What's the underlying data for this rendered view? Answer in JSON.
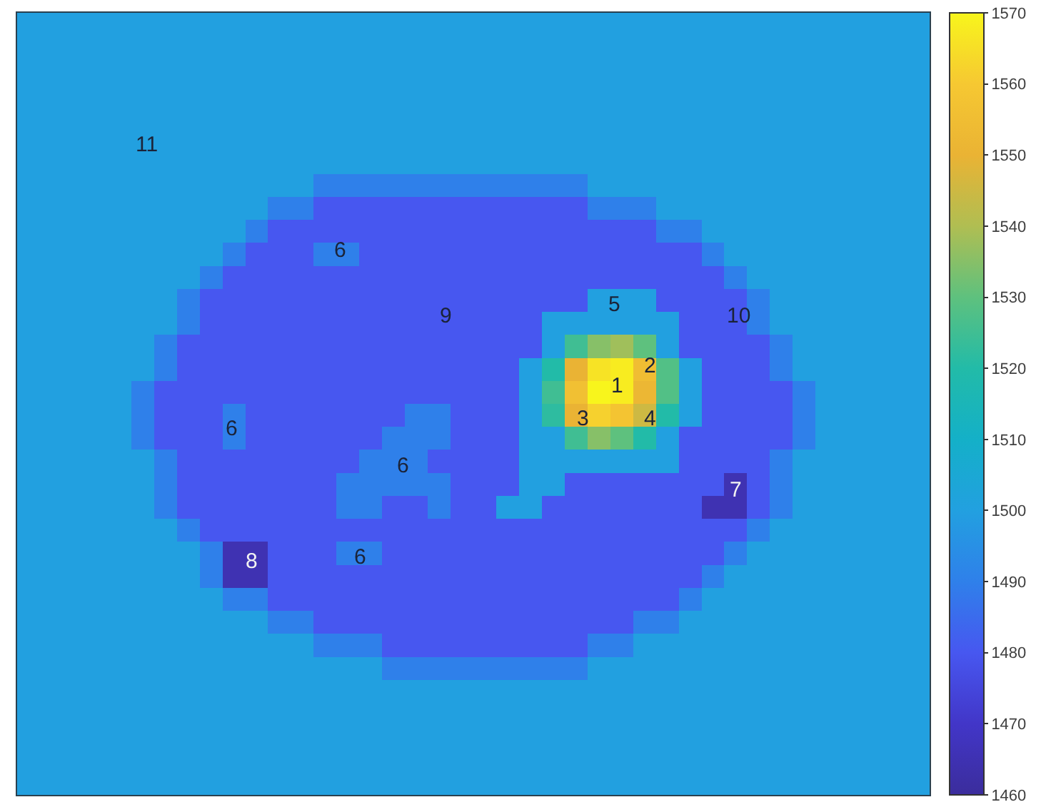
{
  "chart_data": {
    "type": "heatmap",
    "categories": [
      null,
      null,
      null,
      null,
      null,
      null,
      null,
      null,
      null,
      null,
      null,
      null,
      null,
      null,
      null,
      null,
      null,
      null,
      null,
      null,
      null,
      null,
      null,
      null,
      null,
      null,
      null,
      null,
      null,
      null,
      null,
      null,
      null,
      null,
      null,
      null,
      null,
      null,
      null,
      null
    ],
    "y_categories": [
      null,
      null,
      null,
      null,
      null,
      null,
      null,
      null,
      null,
      null,
      null,
      null,
      null,
      null,
      null,
      null,
      null,
      null,
      null,
      null,
      null,
      null,
      null,
      null,
      null,
      null,
      null,
      null,
      null,
      null,
      null,
      null,
      null,
      null
    ],
    "cells": [
      [
        1500,
        1500,
        1500,
        1500,
        1500,
        1500,
        1500,
        1500,
        1500,
        1500,
        1500,
        1500,
        1500,
        1500,
        1500,
        1500,
        1500,
        1500,
        1500,
        1500,
        1500,
        1500,
        1500,
        1500,
        1500,
        1500,
        1500,
        1500,
        1500,
        1500,
        1500,
        1500,
        1500,
        1500,
        1500,
        1500,
        1500,
        1500,
        1500,
        1500
      ],
      [
        1500,
        1500,
        1500,
        1500,
        1500,
        1500,
        1500,
        1500,
        1500,
        1500,
        1500,
        1500,
        1500,
        1500,
        1500,
        1500,
        1500,
        1500,
        1500,
        1500,
        1500,
        1500,
        1500,
        1500,
        1500,
        1500,
        1500,
        1500,
        1500,
        1500,
        1500,
        1500,
        1500,
        1500,
        1500,
        1500,
        1500,
        1500,
        1500,
        1500
      ],
      [
        1500,
        1500,
        1500,
        1500,
        1500,
        1500,
        1500,
        1500,
        1500,
        1500,
        1500,
        1500,
        1500,
        1500,
        1500,
        1500,
        1500,
        1500,
        1500,
        1500,
        1500,
        1500,
        1500,
        1500,
        1500,
        1500,
        1500,
        1500,
        1500,
        1500,
        1500,
        1500,
        1500,
        1500,
        1500,
        1500,
        1500,
        1500,
        1500,
        1500
      ],
      [
        1500,
        1500,
        1500,
        1500,
        1500,
        1500,
        1500,
        1500,
        1500,
        1500,
        1500,
        1500,
        1500,
        1500,
        1500,
        1500,
        1500,
        1500,
        1500,
        1500,
        1500,
        1500,
        1500,
        1500,
        1500,
        1500,
        1500,
        1500,
        1500,
        1500,
        1500,
        1500,
        1500,
        1500,
        1500,
        1500,
        1500,
        1500,
        1500,
        1500
      ],
      [
        1500,
        1500,
        1500,
        1500,
        1500,
        1500,
        1500,
        1500,
        1500,
        1500,
        1500,
        1500,
        1500,
        1500,
        1500,
        1500,
        1500,
        1500,
        1500,
        1500,
        1500,
        1500,
        1500,
        1500,
        1500,
        1500,
        1500,
        1500,
        1500,
        1500,
        1500,
        1500,
        1500,
        1500,
        1500,
        1500,
        1500,
        1500,
        1500,
        1500
      ],
      [
        1500,
        1500,
        1500,
        1500,
        1500,
        1500,
        1500,
        1500,
        1500,
        1500,
        1500,
        1500,
        1500,
        1500,
        1500,
        1500,
        1500,
        1500,
        1500,
        1500,
        1500,
        1500,
        1500,
        1500,
        1500,
        1500,
        1500,
        1500,
        1500,
        1500,
        1500,
        1500,
        1500,
        1500,
        1500,
        1500,
        1500,
        1500,
        1500,
        1500
      ],
      [
        1500,
        1500,
        1500,
        1500,
        1500,
        1500,
        1500,
        1500,
        1500,
        1500,
        1500,
        1500,
        1500,
        1500,
        1500,
        1500,
        1500,
        1500,
        1500,
        1500,
        1500,
        1500,
        1500,
        1500,
        1500,
        1500,
        1500,
        1500,
        1500,
        1500,
        1500,
        1500,
        1500,
        1500,
        1500,
        1500,
        1500,
        1500,
        1500,
        1500
      ],
      [
        1500,
        1500,
        1500,
        1500,
        1500,
        1500,
        1500,
        1500,
        1500,
        1500,
        1500,
        1500,
        1500,
        1490,
        1490,
        1490,
        1490,
        1490,
        1490,
        1490,
        1490,
        1490,
        1490,
        1490,
        1490,
        1500,
        1500,
        1500,
        1500,
        1500,
        1500,
        1500,
        1500,
        1500,
        1500,
        1500,
        1500,
        1500,
        1500,
        1500
      ],
      [
        1500,
        1500,
        1500,
        1500,
        1500,
        1500,
        1500,
        1500,
        1500,
        1500,
        1500,
        1490,
        1490,
        1480,
        1480,
        1480,
        1480,
        1480,
        1480,
        1480,
        1480,
        1480,
        1480,
        1480,
        1480,
        1490,
        1490,
        1490,
        1500,
        1500,
        1500,
        1500,
        1500,
        1500,
        1500,
        1500,
        1500,
        1500,
        1500,
        1500
      ],
      [
        1500,
        1500,
        1500,
        1500,
        1500,
        1500,
        1500,
        1500,
        1500,
        1500,
        1490,
        1480,
        1480,
        1480,
        1480,
        1480,
        1480,
        1480,
        1480,
        1480,
        1480,
        1480,
        1480,
        1480,
        1480,
        1480,
        1480,
        1480,
        1490,
        1490,
        1500,
        1500,
        1500,
        1500,
        1500,
        1500,
        1500,
        1500,
        1500,
        1500
      ],
      [
        1500,
        1500,
        1500,
        1500,
        1500,
        1500,
        1500,
        1500,
        1500,
        1490,
        1480,
        1480,
        1480,
        1490,
        1490,
        1480,
        1480,
        1480,
        1480,
        1480,
        1480,
        1480,
        1480,
        1480,
        1480,
        1480,
        1480,
        1480,
        1480,
        1480,
        1490,
        1500,
        1500,
        1500,
        1500,
        1500,
        1500,
        1500,
        1500,
        1500
      ],
      [
        1500,
        1500,
        1500,
        1500,
        1500,
        1500,
        1500,
        1500,
        1490,
        1480,
        1480,
        1480,
        1480,
        1480,
        1480,
        1480,
        1480,
        1480,
        1480,
        1480,
        1480,
        1480,
        1480,
        1480,
        1480,
        1480,
        1480,
        1480,
        1480,
        1480,
        1480,
        1490,
        1500,
        1500,
        1500,
        1500,
        1500,
        1500,
        1500,
        1500
      ],
      [
        1500,
        1500,
        1500,
        1500,
        1500,
        1500,
        1500,
        1490,
        1480,
        1480,
        1480,
        1480,
        1480,
        1480,
        1480,
        1480,
        1480,
        1480,
        1480,
        1480,
        1480,
        1480,
        1480,
        1480,
        1480,
        1500,
        1500,
        1500,
        1480,
        1480,
        1480,
        1480,
        1490,
        1500,
        1500,
        1500,
        1500,
        1500,
        1500,
        1500
      ],
      [
        1500,
        1500,
        1500,
        1500,
        1500,
        1500,
        1500,
        1490,
        1480,
        1480,
        1480,
        1480,
        1480,
        1480,
        1480,
        1480,
        1480,
        1480,
        1480,
        1480,
        1480,
        1480,
        1480,
        1500,
        1500,
        1500,
        1500,
        1500,
        1500,
        1480,
        1480,
        1480,
        1490,
        1500,
        1500,
        1500,
        1500,
        1500,
        1500,
        1500
      ],
      [
        1500,
        1500,
        1500,
        1500,
        1500,
        1500,
        1490,
        1480,
        1480,
        1480,
        1480,
        1480,
        1480,
        1480,
        1480,
        1480,
        1480,
        1480,
        1480,
        1480,
        1480,
        1480,
        1480,
        1500,
        1525,
        1535,
        1538,
        1530,
        1500,
        1480,
        1480,
        1480,
        1480,
        1490,
        1500,
        1500,
        1500,
        1500,
        1500,
        1500
      ],
      [
        1500,
        1500,
        1500,
        1500,
        1500,
        1500,
        1490,
        1480,
        1480,
        1480,
        1480,
        1480,
        1480,
        1480,
        1480,
        1480,
        1480,
        1480,
        1480,
        1480,
        1480,
        1480,
        1500,
        1520,
        1550,
        1566,
        1568,
        1555,
        1528,
        1500,
        1480,
        1480,
        1480,
        1490,
        1500,
        1500,
        1500,
        1500,
        1500,
        1500
      ],
      [
        1500,
        1500,
        1500,
        1500,
        1500,
        1490,
        1480,
        1480,
        1480,
        1480,
        1480,
        1480,
        1480,
        1480,
        1480,
        1480,
        1480,
        1480,
        1480,
        1480,
        1480,
        1480,
        1500,
        1525,
        1556,
        1570,
        1568,
        1552,
        1528,
        1500,
        1480,
        1480,
        1480,
        1480,
        1490,
        1500,
        1500,
        1500,
        1500,
        1500
      ],
      [
        1500,
        1500,
        1500,
        1500,
        1500,
        1490,
        1480,
        1480,
        1480,
        1490,
        1480,
        1480,
        1480,
        1480,
        1480,
        1480,
        1480,
        1490,
        1490,
        1480,
        1480,
        1480,
        1500,
        1522,
        1550,
        1562,
        1558,
        1545,
        1520,
        1500,
        1480,
        1480,
        1480,
        1480,
        1490,
        1500,
        1500,
        1500,
        1500,
        1500
      ],
      [
        1500,
        1500,
        1500,
        1500,
        1500,
        1490,
        1480,
        1480,
        1480,
        1490,
        1480,
        1480,
        1480,
        1480,
        1480,
        1480,
        1490,
        1490,
        1490,
        1480,
        1480,
        1480,
        1500,
        1500,
        1525,
        1535,
        1530,
        1520,
        1500,
        1480,
        1480,
        1480,
        1480,
        1480,
        1490,
        1500,
        1500,
        1500,
        1500,
        1500
      ],
      [
        1500,
        1500,
        1500,
        1500,
        1500,
        1500,
        1490,
        1480,
        1480,
        1480,
        1480,
        1480,
        1480,
        1480,
        1480,
        1490,
        1490,
        1490,
        1480,
        1480,
        1480,
        1480,
        1500,
        1500,
        1500,
        1500,
        1500,
        1500,
        1500,
        1480,
        1480,
        1480,
        1480,
        1490,
        1500,
        1500,
        1500,
        1500,
        1500,
        1500
      ],
      [
        1500,
        1500,
        1500,
        1500,
        1500,
        1500,
        1490,
        1480,
        1480,
        1480,
        1480,
        1480,
        1480,
        1480,
        1490,
        1490,
        1490,
        1490,
        1490,
        1480,
        1480,
        1480,
        1500,
        1500,
        1480,
        1480,
        1480,
        1480,
        1480,
        1480,
        1480,
        1465,
        1480,
        1490,
        1500,
        1500,
        1500,
        1500,
        1500,
        1500
      ],
      [
        1500,
        1500,
        1500,
        1500,
        1500,
        1500,
        1490,
        1480,
        1480,
        1480,
        1480,
        1480,
        1480,
        1480,
        1490,
        1490,
        1480,
        1480,
        1490,
        1480,
        1480,
        1500,
        1500,
        1480,
        1480,
        1480,
        1480,
        1480,
        1480,
        1480,
        1465,
        1465,
        1480,
        1490,
        1500,
        1500,
        1500,
        1500,
        1500,
        1500
      ],
      [
        1500,
        1500,
        1500,
        1500,
        1500,
        1500,
        1500,
        1490,
        1480,
        1480,
        1480,
        1480,
        1480,
        1480,
        1480,
        1480,
        1480,
        1480,
        1480,
        1480,
        1480,
        1480,
        1480,
        1480,
        1480,
        1480,
        1480,
        1480,
        1480,
        1480,
        1480,
        1480,
        1490,
        1500,
        1500,
        1500,
        1500,
        1500,
        1500,
        1500
      ],
      [
        1500,
        1500,
        1500,
        1500,
        1500,
        1500,
        1500,
        1500,
        1490,
        1465,
        1465,
        1480,
        1480,
        1480,
        1490,
        1490,
        1480,
        1480,
        1480,
        1480,
        1480,
        1480,
        1480,
        1480,
        1480,
        1480,
        1480,
        1480,
        1480,
        1480,
        1480,
        1490,
        1500,
        1500,
        1500,
        1500,
        1500,
        1500,
        1500,
        1500
      ],
      [
        1500,
        1500,
        1500,
        1500,
        1500,
        1500,
        1500,
        1500,
        1490,
        1465,
        1465,
        1480,
        1480,
        1480,
        1480,
        1480,
        1480,
        1480,
        1480,
        1480,
        1480,
        1480,
        1480,
        1480,
        1480,
        1480,
        1480,
        1480,
        1480,
        1480,
        1490,
        1500,
        1500,
        1500,
        1500,
        1500,
        1500,
        1500,
        1500,
        1500
      ],
      [
        1500,
        1500,
        1500,
        1500,
        1500,
        1500,
        1500,
        1500,
        1500,
        1490,
        1490,
        1480,
        1480,
        1480,
        1480,
        1480,
        1480,
        1480,
        1480,
        1480,
        1480,
        1480,
        1480,
        1480,
        1480,
        1480,
        1480,
        1480,
        1480,
        1490,
        1500,
        1500,
        1500,
        1500,
        1500,
        1500,
        1500,
        1500,
        1500,
        1500
      ],
      [
        1500,
        1500,
        1500,
        1500,
        1500,
        1500,
        1500,
        1500,
        1500,
        1500,
        1500,
        1490,
        1490,
        1480,
        1480,
        1480,
        1480,
        1480,
        1480,
        1480,
        1480,
        1480,
        1480,
        1480,
        1480,
        1480,
        1480,
        1490,
        1490,
        1500,
        1500,
        1500,
        1500,
        1500,
        1500,
        1500,
        1500,
        1500,
        1500,
        1500
      ],
      [
        1500,
        1500,
        1500,
        1500,
        1500,
        1500,
        1500,
        1500,
        1500,
        1500,
        1500,
        1500,
        1500,
        1490,
        1490,
        1490,
        1480,
        1480,
        1480,
        1480,
        1480,
        1480,
        1480,
        1480,
        1480,
        1490,
        1490,
        1500,
        1500,
        1500,
        1500,
        1500,
        1500,
        1500,
        1500,
        1500,
        1500,
        1500,
        1500,
        1500
      ],
      [
        1500,
        1500,
        1500,
        1500,
        1500,
        1500,
        1500,
        1500,
        1500,
        1500,
        1500,
        1500,
        1500,
        1500,
        1500,
        1500,
        1490,
        1490,
        1490,
        1490,
        1490,
        1490,
        1490,
        1490,
        1490,
        1500,
        1500,
        1500,
        1500,
        1500,
        1500,
        1500,
        1500,
        1500,
        1500,
        1500,
        1500,
        1500,
        1500,
        1500
      ],
      [
        1500,
        1500,
        1500,
        1500,
        1500,
        1500,
        1500,
        1500,
        1500,
        1500,
        1500,
        1500,
        1500,
        1500,
        1500,
        1500,
        1500,
        1500,
        1500,
        1500,
        1500,
        1500,
        1500,
        1500,
        1500,
        1500,
        1500,
        1500,
        1500,
        1500,
        1500,
        1500,
        1500,
        1500,
        1500,
        1500,
        1500,
        1500,
        1500,
        1500
      ],
      [
        1500,
        1500,
        1500,
        1500,
        1500,
        1500,
        1500,
        1500,
        1500,
        1500,
        1500,
        1500,
        1500,
        1500,
        1500,
        1500,
        1500,
        1500,
        1500,
        1500,
        1500,
        1500,
        1500,
        1500,
        1500,
        1500,
        1500,
        1500,
        1500,
        1500,
        1500,
        1500,
        1500,
        1500,
        1500,
        1500,
        1500,
        1500,
        1500,
        1500
      ],
      [
        1500,
        1500,
        1500,
        1500,
        1500,
        1500,
        1500,
        1500,
        1500,
        1500,
        1500,
        1500,
        1500,
        1500,
        1500,
        1500,
        1500,
        1500,
        1500,
        1500,
        1500,
        1500,
        1500,
        1500,
        1500,
        1500,
        1500,
        1500,
        1500,
        1500,
        1500,
        1500,
        1500,
        1500,
        1500,
        1500,
        1500,
        1500,
        1500,
        1500
      ],
      [
        1500,
        1500,
        1500,
        1500,
        1500,
        1500,
        1500,
        1500,
        1500,
        1500,
        1500,
        1500,
        1500,
        1500,
        1500,
        1500,
        1500,
        1500,
        1500,
        1500,
        1500,
        1500,
        1500,
        1500,
        1500,
        1500,
        1500,
        1500,
        1500,
        1500,
        1500,
        1500,
        1500,
        1500,
        1500,
        1500,
        1500,
        1500,
        1500,
        1500
      ],
      [
        1500,
        1500,
        1500,
        1500,
        1500,
        1500,
        1500,
        1500,
        1500,
        1500,
        1500,
        1500,
        1500,
        1500,
        1500,
        1500,
        1500,
        1500,
        1500,
        1500,
        1500,
        1500,
        1500,
        1500,
        1500,
        1500,
        1500,
        1500,
        1500,
        1500,
        1500,
        1500,
        1500,
        1500,
        1500,
        1500,
        1500,
        1500,
        1500,
        1500
      ]
    ],
    "annotations": [
      "11",
      "6",
      "5",
      "9",
      "10",
      "2",
      "1",
      "3",
      "4",
      "6",
      "6",
      "7",
      "6",
      "8"
    ],
    "clim": [
      1460,
      1570
    ],
    "cticks": [
      1460,
      1470,
      1480,
      1490,
      1500,
      1510,
      1520,
      1530,
      1540,
      1550,
      1560,
      1570
    ],
    "tick_labels": false
  }
}
